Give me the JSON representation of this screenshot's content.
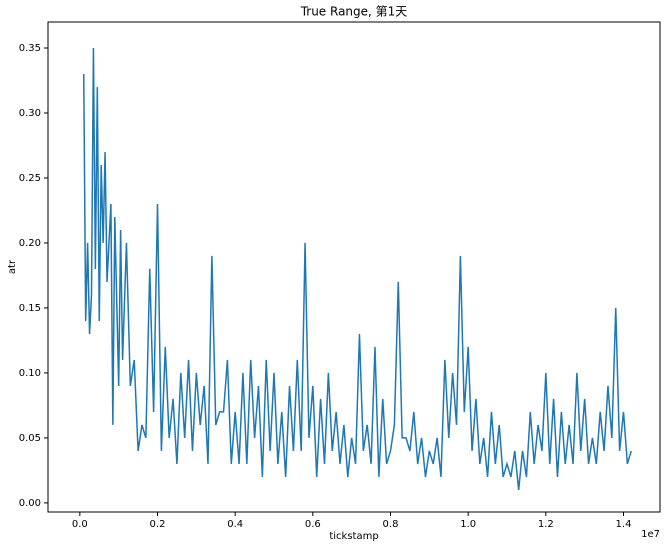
{
  "chart_data": {
    "type": "line",
    "title": "True Range, 第1天",
    "xlabel": "tickstamp",
    "ylabel": "atr",
    "x_offset_label": "1e7",
    "color": "#1f77b4",
    "x": [
      0.01,
      0.015,
      0.02,
      0.025,
      0.03,
      0.035,
      0.04,
      0.045,
      0.05,
      0.055,
      0.06,
      0.065,
      0.07,
      0.08,
      0.085,
      0.09,
      0.1,
      0.105,
      0.11,
      0.12,
      0.13,
      0.14,
      0.15,
      0.16,
      0.17,
      0.18,
      0.19,
      0.2,
      0.21,
      0.22,
      0.23,
      0.24,
      0.25,
      0.26,
      0.27,
      0.28,
      0.29,
      0.3,
      0.31,
      0.32,
      0.33,
      0.34,
      0.35,
      0.36,
      0.37,
      0.38,
      0.39,
      0.4,
      0.41,
      0.42,
      0.43,
      0.44,
      0.45,
      0.46,
      0.47,
      0.48,
      0.49,
      0.5,
      0.51,
      0.52,
      0.53,
      0.54,
      0.55,
      0.56,
      0.57,
      0.58,
      0.59,
      0.6,
      0.61,
      0.62,
      0.63,
      0.64,
      0.65,
      0.66,
      0.67,
      0.68,
      0.69,
      0.7,
      0.71,
      0.72,
      0.73,
      0.74,
      0.75,
      0.76,
      0.77,
      0.78,
      0.79,
      0.8,
      0.81,
      0.82,
      0.83,
      0.84,
      0.85,
      0.86,
      0.87,
      0.88,
      0.89,
      0.9,
      0.91,
      0.92,
      0.93,
      0.94,
      0.95,
      0.96,
      0.97,
      0.98,
      0.99,
      1.0,
      1.01,
      1.02,
      1.03,
      1.04,
      1.05,
      1.06,
      1.07,
      1.08,
      1.09,
      1.1,
      1.11,
      1.12,
      1.13,
      1.14,
      1.15,
      1.16,
      1.17,
      1.18,
      1.19,
      1.2,
      1.21,
      1.22,
      1.23,
      1.24,
      1.25,
      1.26,
      1.27,
      1.28,
      1.29,
      1.3,
      1.31,
      1.32,
      1.33,
      1.34,
      1.35,
      1.36,
      1.37,
      1.38,
      1.39,
      1.4,
      1.41,
      1.42
    ],
    "values": [
      0.33,
      0.14,
      0.2,
      0.13,
      0.16,
      0.35,
      0.18,
      0.32,
      0.14,
      0.26,
      0.2,
      0.27,
      0.17,
      0.23,
      0.06,
      0.22,
      0.09,
      0.21,
      0.11,
      0.2,
      0.09,
      0.11,
      0.04,
      0.06,
      0.05,
      0.18,
      0.07,
      0.23,
      0.04,
      0.12,
      0.05,
      0.08,
      0.03,
      0.1,
      0.05,
      0.11,
      0.04,
      0.1,
      0.06,
      0.09,
      0.03,
      0.19,
      0.06,
      0.07,
      0.07,
      0.11,
      0.03,
      0.07,
      0.03,
      0.1,
      0.03,
      0.11,
      0.05,
      0.09,
      0.02,
      0.11,
      0.04,
      0.1,
      0.03,
      0.07,
      0.02,
      0.09,
      0.04,
      0.11,
      0.04,
      0.2,
      0.05,
      0.09,
      0.02,
      0.08,
      0.03,
      0.1,
      0.04,
      0.07,
      0.03,
      0.06,
      0.02,
      0.05,
      0.03,
      0.13,
      0.04,
      0.06,
      0.03,
      0.12,
      0.02,
      0.08,
      0.03,
      0.04,
      0.06,
      0.17,
      0.05,
      0.05,
      0.04,
      0.07,
      0.03,
      0.05,
      0.02,
      0.04,
      0.03,
      0.05,
      0.02,
      0.11,
      0.05,
      0.1,
      0.06,
      0.19,
      0.07,
      0.12,
      0.04,
      0.08,
      0.03,
      0.05,
      0.02,
      0.07,
      0.03,
      0.06,
      0.02,
      0.03,
      0.02,
      0.04,
      0.01,
      0.04,
      0.02,
      0.07,
      0.03,
      0.06,
      0.04,
      0.1,
      0.03,
      0.08,
      0.02,
      0.07,
      0.03,
      0.06,
      0.03,
      0.1,
      0.04,
      0.08,
      0.03,
      0.05,
      0.03,
      0.07,
      0.04,
      0.09,
      0.05,
      0.15,
      0.04,
      0.07,
      0.03,
      0.04
    ],
    "xlim": [
      -0.082,
      1.494
    ],
    "ylim": [
      -0.007,
      0.37
    ],
    "xticks": [
      {
        "value": 0,
        "label": "0.0"
      },
      0.2,
      0.4,
      0.6,
      0.8,
      {
        "value": 1,
        "label": "1.0"
      },
      1.2,
      1.4
    ],
    "yticks": [
      {
        "value": 0,
        "label": "0.00"
      },
      0.05,
      {
        "value": 0.1,
        "label": "0.10"
      },
      0.15,
      {
        "value": 0.2,
        "label": "0.20"
      },
      0.25,
      {
        "value": 0.3,
        "label": "0.30"
      },
      0.35
    ],
    "grid": false
  }
}
